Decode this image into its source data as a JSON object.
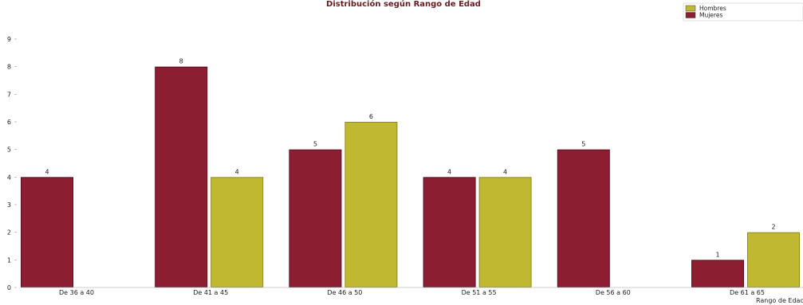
{
  "chart_data": {
    "type": "bar",
    "title": "Distribución según Rango de Edad",
    "xlabel": "Rango de Edad",
    "ylabel": "",
    "categories": [
      "De 36 a 40",
      "De 41 a 45",
      "De 46 a 50",
      "De 51 a 55",
      "De 56 a 60",
      "De 61 a 65"
    ],
    "series": [
      {
        "name": "Mujeres",
        "color": "#8b1f31",
        "values": [
          4,
          8,
          5,
          4,
          5,
          1
        ]
      },
      {
        "name": "Hombres",
        "color": "#c0b830",
        "values": [
          null,
          4,
          6,
          4,
          null,
          2
        ]
      }
    ],
    "ylim": [
      0,
      9
    ],
    "yticks": [
      0,
      1,
      2,
      3,
      4,
      5,
      6,
      7,
      8,
      9
    ],
    "grid": false,
    "legend": {
      "position": "top-right",
      "entries": [
        {
          "label": "Hombres",
          "color": "#c0b830"
        },
        {
          "label": "Mujeres",
          "color": "#8b1f31"
        }
      ]
    },
    "data_labels": true
  }
}
